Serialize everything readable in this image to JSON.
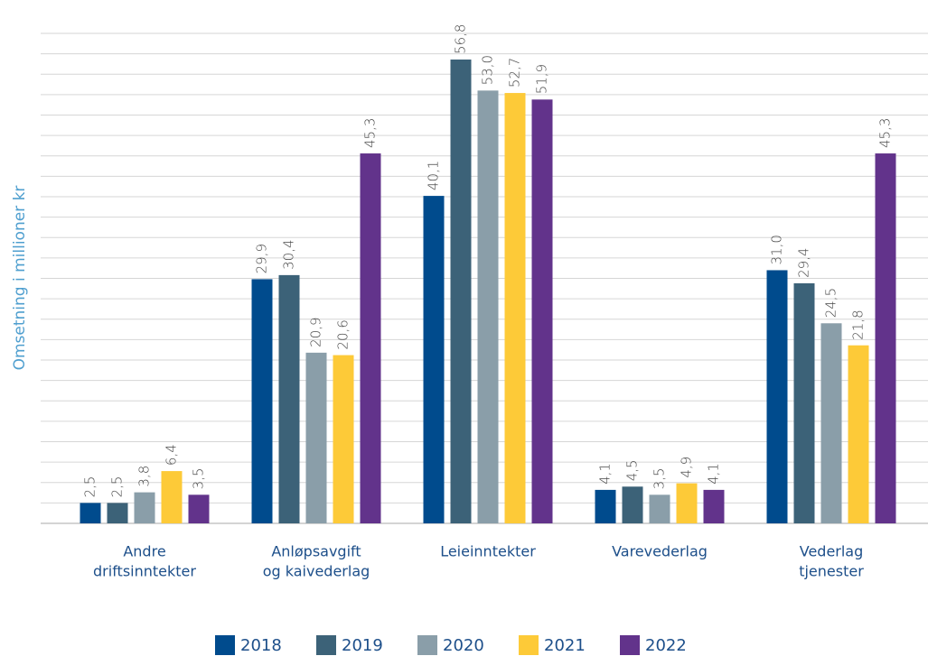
{
  "chart_data": {
    "type": "bar",
    "y_label": "Omsetning i millioner kr",
    "categories": [
      [
        "Andre",
        "driftsinntekter"
      ],
      [
        "Anløpsavgift",
        "og kaivederlag"
      ],
      [
        "Leieinntekter"
      ],
      [
        "Varevederlag"
      ],
      [
        "Vederlag",
        "tjenester"
      ]
    ],
    "series": [
      {
        "name": "2018",
        "color": "#004b8d",
        "values": [
          2.5,
          29.9,
          40.1,
          4.1,
          31.0
        ],
        "value_labels": [
          "2,5",
          "29,9",
          "40,1",
          "4,1",
          "31,0"
        ]
      },
      {
        "name": "2019",
        "color": "#3c6278",
        "values": [
          2.5,
          30.4,
          56.8,
          4.5,
          29.4
        ],
        "value_labels": [
          "2,5",
          "30,4",
          "56,8",
          "4,5",
          "29,4"
        ]
      },
      {
        "name": "2020",
        "color": "#8a9ea9",
        "values": [
          3.8,
          20.9,
          53.0,
          3.5,
          24.5
        ],
        "value_labels": [
          "3,8",
          "20,9",
          "53,0",
          "3,5",
          "24,5"
        ]
      },
      {
        "name": "2021",
        "color": "#fdca38",
        "values": [
          6.4,
          20.6,
          52.7,
          4.9,
          21.8
        ],
        "value_labels": [
          "6,4",
          "20,6",
          "52,7",
          "4,9",
          "21,8"
        ]
      },
      {
        "name": "2022",
        "color": "#62338b",
        "values": [
          3.5,
          45.3,
          51.9,
          4.1,
          45.3
        ],
        "value_labels": [
          "3,5",
          "45,3",
          "51,9",
          "4,1",
          "45,3"
        ]
      }
    ],
    "ylim": [
      0,
      60
    ],
    "yticks": [
      0,
      2.5,
      5,
      7.5,
      10,
      12.5,
      15,
      17.5,
      20,
      22.5,
      25,
      27.5,
      30,
      32.5,
      35,
      37.5,
      40,
      42.5,
      45,
      47.5,
      50,
      52.5,
      55,
      57.5,
      60
    ],
    "grid": true,
    "legend": "bottom"
  }
}
